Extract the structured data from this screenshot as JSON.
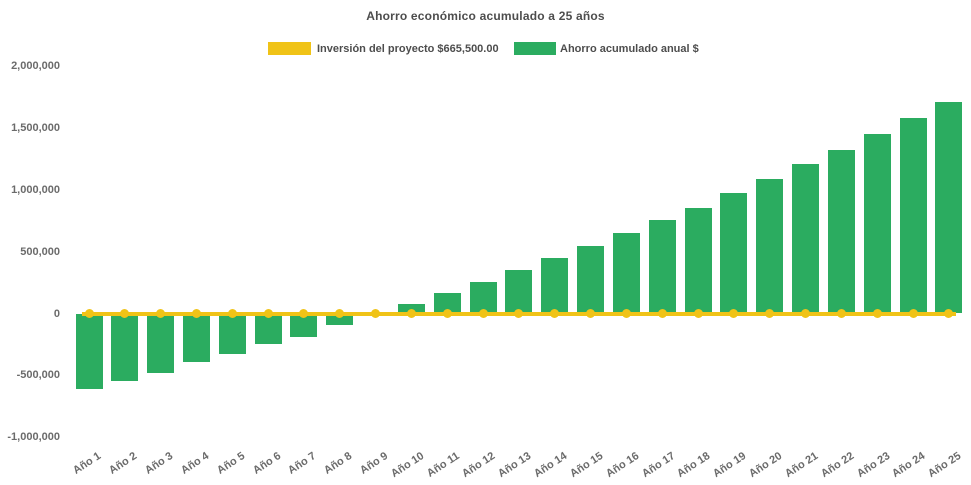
{
  "title": "Ahorro económico acumulado a 25 años",
  "colors": {
    "investment_yellow": "#f0c317",
    "savings_green": "#2bac60",
    "title_text": "#4d4d4d",
    "axis_text": "#6b6b6b",
    "background": "#ffffff"
  },
  "legend": {
    "position": "top",
    "items": [
      {
        "label": "Inversión del proyecto $665,500.00",
        "color": "#f0c317",
        "series_type": "line"
      },
      {
        "label": "Ahorro acumulado anual $",
        "color": "#2bac60",
        "series_type": "bar"
      }
    ]
  },
  "chart_data": {
    "type": "bar",
    "title": "Ahorro económico acumulado a 25 años",
    "xlabel": "",
    "ylabel": "",
    "grid": false,
    "legend_position": "top",
    "ylim": [
      -1000000,
      2000000
    ],
    "ytick_values": [
      2000000,
      1500000,
      1000000,
      500000,
      0,
      -500000,
      -1000000
    ],
    "ytick_labels": [
      "2,000,000",
      "1,500,000",
      "1,000,000",
      "500,000",
      "0",
      "-500,000",
      "-1,000,000"
    ],
    "categories": [
      "Año 1",
      "Año 2",
      "Año 3",
      "Año 4",
      "Año 5",
      "Año 6",
      "Año 7",
      "Año 8",
      "Año 9",
      "Año 10",
      "Año 11",
      "Año 12",
      "Año 13",
      "Año 14",
      "Año 15",
      "Año 16",
      "Año 17",
      "Año 18",
      "Año 19",
      "Año 20",
      "Año 21",
      "Año 22",
      "Año 23",
      "Año 24",
      "Año 25"
    ],
    "series": [
      {
        "name": "Ahorro acumulado anual $",
        "type": "bar",
        "color": "#2bac60",
        "values": [
          -613000,
          -546000,
          -483000,
          -394000,
          -324000,
          -249000,
          -189000,
          -95000,
          -5000,
          78000,
          162000,
          255000,
          348000,
          450000,
          545000,
          648000,
          755000,
          855000,
          977000,
          1085000,
          1206000,
          1322000,
          1449000,
          1584000,
          1713000
        ]
      },
      {
        "name": "Inversión del proyecto $665,500.00",
        "type": "line",
        "color": "#f0c317",
        "marker": "circle",
        "values": [
          0,
          0,
          0,
          0,
          0,
          0,
          0,
          0,
          0,
          0,
          0,
          0,
          0,
          0,
          0,
          0,
          0,
          0,
          0,
          0,
          0,
          0,
          0,
          0,
          0
        ]
      }
    ]
  }
}
